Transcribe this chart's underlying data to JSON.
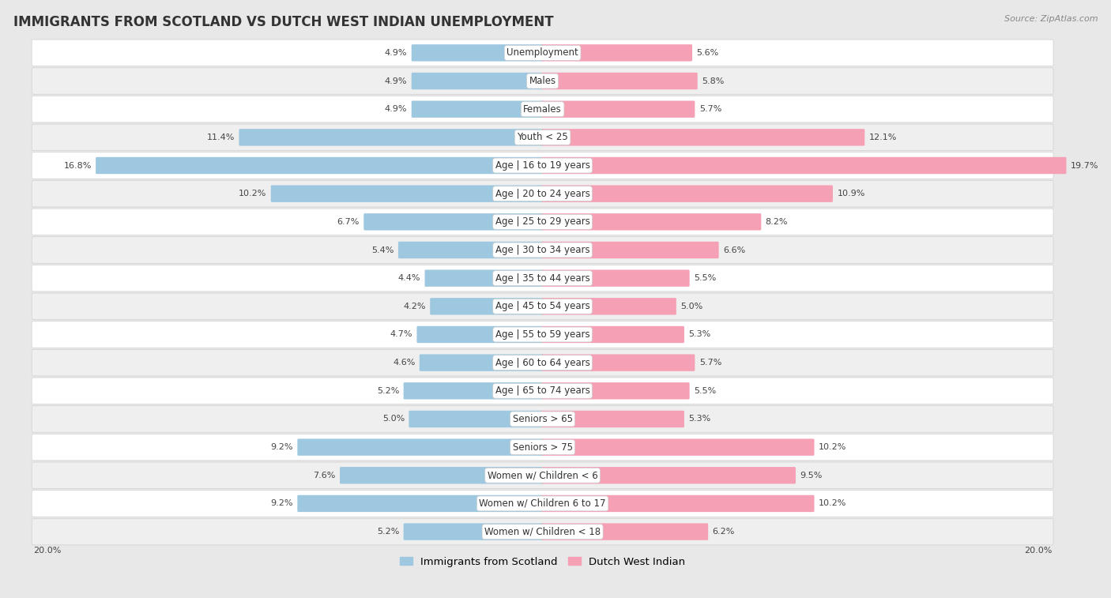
{
  "title": "IMMIGRANTS FROM SCOTLAND VS DUTCH WEST INDIAN UNEMPLOYMENT",
  "source": "Source: ZipAtlas.com",
  "categories": [
    "Unemployment",
    "Males",
    "Females",
    "Youth < 25",
    "Age | 16 to 19 years",
    "Age | 20 to 24 years",
    "Age | 25 to 29 years",
    "Age | 30 to 34 years",
    "Age | 35 to 44 years",
    "Age | 45 to 54 years",
    "Age | 55 to 59 years",
    "Age | 60 to 64 years",
    "Age | 65 to 74 years",
    "Seniors > 65",
    "Seniors > 75",
    "Women w/ Children < 6",
    "Women w/ Children 6 to 17",
    "Women w/ Children < 18"
  ],
  "scotland_values": [
    4.9,
    4.9,
    4.9,
    11.4,
    16.8,
    10.2,
    6.7,
    5.4,
    4.4,
    4.2,
    4.7,
    4.6,
    5.2,
    5.0,
    9.2,
    7.6,
    9.2,
    5.2
  ],
  "dutch_values": [
    5.6,
    5.8,
    5.7,
    12.1,
    19.7,
    10.9,
    8.2,
    6.6,
    5.5,
    5.0,
    5.3,
    5.7,
    5.5,
    5.3,
    10.2,
    9.5,
    10.2,
    6.2
  ],
  "scotland_color": "#9dc8e0",
  "dutch_color": "#f5a0b5",
  "axis_max": 20.0,
  "background_color": "#e8e8e8",
  "row_color_even": "#ffffff",
  "row_color_odd": "#efefef",
  "title_fontsize": 12,
  "label_fontsize": 8.5,
  "value_fontsize": 8,
  "legend_fontsize": 9.5,
  "source_fontsize": 8
}
